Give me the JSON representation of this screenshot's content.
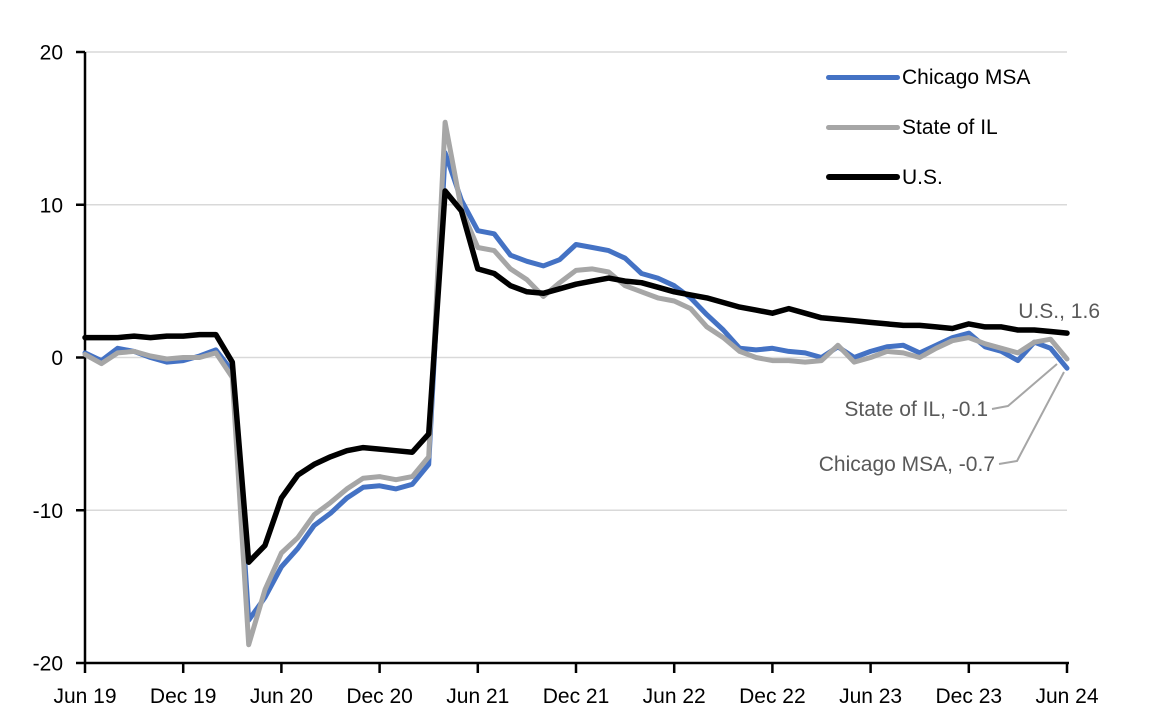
{
  "chart_data": {
    "type": "line",
    "title": "",
    "xlabel": "",
    "ylabel": "",
    "ylim": [
      -20,
      20
    ],
    "y_ticks": [
      20,
      10,
      0,
      -10,
      -20
    ],
    "grid": "horizontal",
    "gridline_color": "#d9d9d9",
    "x_tick_labels": [
      "Jun 19",
      "Dec 19",
      "Jun 20",
      "Dec 20",
      "Jun 21",
      "Dec 21",
      "Jun 22",
      "Dec 22",
      "Jun 23",
      "Dec 23",
      "Jun 24"
    ],
    "x_months": [
      "2019-06",
      "2019-07",
      "2019-08",
      "2019-09",
      "2019-10",
      "2019-11",
      "2019-12",
      "2020-01",
      "2020-02",
      "2020-03",
      "2020-04",
      "2020-05",
      "2020-06",
      "2020-07",
      "2020-08",
      "2020-09",
      "2020-10",
      "2020-11",
      "2020-12",
      "2021-01",
      "2021-02",
      "2021-03",
      "2021-04",
      "2021-05",
      "2021-06",
      "2021-07",
      "2021-08",
      "2021-09",
      "2021-10",
      "2021-11",
      "2021-12",
      "2022-01",
      "2022-02",
      "2022-03",
      "2022-04",
      "2022-05",
      "2022-06",
      "2022-07",
      "2022-08",
      "2022-09",
      "2022-10",
      "2022-11",
      "2022-12",
      "2023-01",
      "2023-02",
      "2023-03",
      "2023-04",
      "2023-05",
      "2023-06",
      "2023-07",
      "2023-08",
      "2023-09",
      "2023-10",
      "2023-11",
      "2023-12",
      "2024-01",
      "2024-02",
      "2024-03",
      "2024-04",
      "2024-05",
      "2024-06"
    ],
    "legend": {
      "position": "top-right"
    },
    "series": [
      {
        "name": "Chicago MSA",
        "color": "#4472c4",
        "last_value": -0.7,
        "values": [
          0.3,
          -0.2,
          0.6,
          0.4,
          0.0,
          -0.3,
          -0.2,
          0.1,
          0.5,
          -0.9,
          -17.2,
          -15.7,
          -13.7,
          -12.5,
          -11.0,
          -10.2,
          -9.2,
          -8.5,
          -8.4,
          -8.6,
          -8.3,
          -7.0,
          13.4,
          10.3,
          8.3,
          8.1,
          6.7,
          6.3,
          6.0,
          6.4,
          7.4,
          7.2,
          7.0,
          6.5,
          5.5,
          5.2,
          4.7,
          3.9,
          2.8,
          1.8,
          0.6,
          0.5,
          0.6,
          0.4,
          0.3,
          0.0,
          0.7,
          0.0,
          0.4,
          0.7,
          0.8,
          0.3,
          0.8,
          1.3,
          1.6,
          0.7,
          0.4,
          -0.2,
          1.0,
          0.6,
          -0.7
        ]
      },
      {
        "name": "State of IL",
        "color": "#a6a6a6",
        "last_value": -0.1,
        "values": [
          0.2,
          -0.4,
          0.3,
          0.4,
          0.1,
          -0.1,
          0.0,
          0.0,
          0.3,
          -1.3,
          -18.8,
          -15.2,
          -12.8,
          -11.8,
          -10.3,
          -9.5,
          -8.6,
          -7.9,
          -7.8,
          -8.0,
          -7.8,
          -6.5,
          15.4,
          9.7,
          7.2,
          7.0,
          5.8,
          5.1,
          4.0,
          4.9,
          5.7,
          5.8,
          5.6,
          4.7,
          4.3,
          3.9,
          3.7,
          3.2,
          2.0,
          1.3,
          0.4,
          0.0,
          -0.2,
          -0.2,
          -0.3,
          -0.2,
          0.8,
          -0.3,
          0.0,
          0.4,
          0.3,
          0.0,
          0.6,
          1.1,
          1.3,
          0.9,
          0.6,
          0.3,
          1.0,
          1.2,
          -0.1
        ]
      },
      {
        "name": "U.S.",
        "color": "#000000",
        "last_value": 1.6,
        "values": [
          1.3,
          1.3,
          1.3,
          1.4,
          1.3,
          1.4,
          1.4,
          1.5,
          1.5,
          -0.3,
          -13.4,
          -12.3,
          -9.2,
          -7.7,
          -7.0,
          -6.5,
          -6.1,
          -5.9,
          -6.0,
          -6.1,
          -6.2,
          -5.0,
          10.9,
          9.6,
          5.8,
          5.5,
          4.7,
          4.3,
          4.2,
          4.5,
          4.8,
          5.0,
          5.2,
          5.0,
          4.9,
          4.6,
          4.3,
          4.1,
          3.9,
          3.6,
          3.3,
          3.1,
          2.9,
          3.2,
          2.9,
          2.6,
          2.5,
          2.4,
          2.3,
          2.2,
          2.1,
          2.1,
          2.0,
          1.9,
          2.2,
          2.0,
          2.0,
          1.8,
          1.8,
          1.7,
          1.6
        ]
      }
    ],
    "annotations": {
      "us": {
        "text": "U.S., 1.6"
      },
      "stateil": {
        "text": "State of IL, -0.1"
      },
      "chicago": {
        "text": "Chicago MSA, -0.7"
      }
    },
    "annotation_text_color": "#595959",
    "leader_line_color": "#a6a6a6"
  }
}
